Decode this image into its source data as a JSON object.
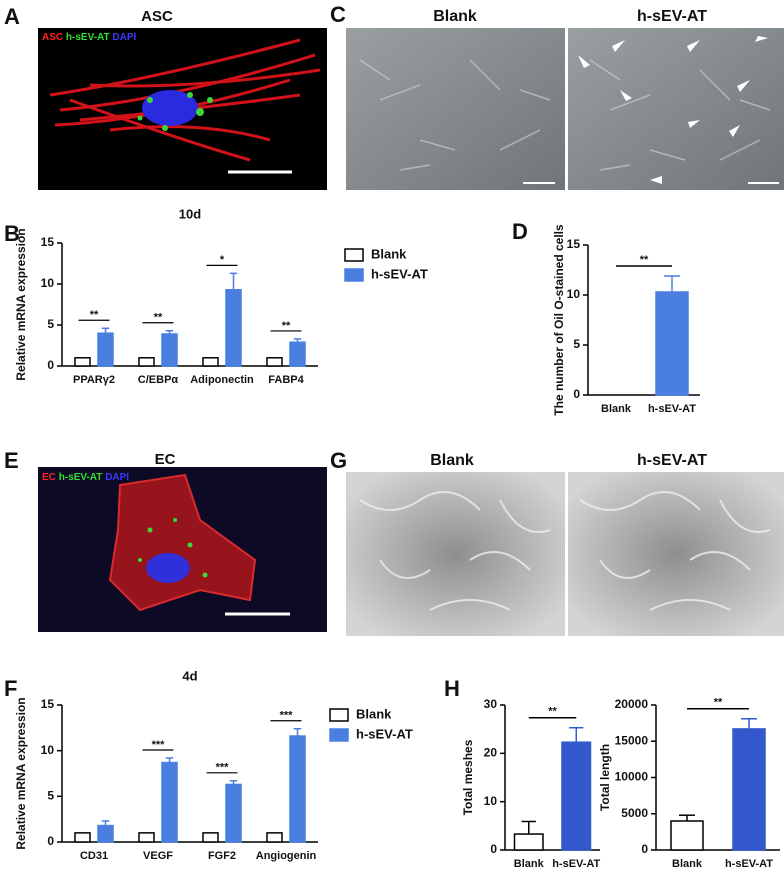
{
  "panel_A": {
    "letter": "A",
    "title": "ASC",
    "stains": [
      "ASC",
      "h-sEV-AT",
      "DAPI"
    ]
  },
  "panel_C": {
    "letter": "C",
    "labels": [
      "Blank",
      "h-sEV-AT"
    ]
  },
  "panel_E": {
    "letter": "E",
    "title": "EC",
    "stains": [
      "EC",
      "h-sEV-AT",
      "DAPI"
    ]
  },
  "panel_G": {
    "letter": "G",
    "labels": [
      "Blank",
      "h-sEV-AT"
    ]
  },
  "chart_letters": [
    "B",
    "D",
    "F",
    "H"
  ],
  "chart_data": [
    {
      "type": "bar",
      "title": "10d",
      "y_label": "Relative mRNA expression",
      "categories": [
        "PPARγ2",
        "C/EBPα",
        "Adiponectin",
        "FABP4"
      ],
      "series": [
        {
          "name": "Blank",
          "color": "#ffffff",
          "values": [
            1,
            1,
            1,
            1
          ],
          "errors": [
            null,
            null,
            null,
            null
          ]
        },
        {
          "name": "h-sEV-AT",
          "color": "#4a7fe0",
          "values": [
            4.0,
            3.9,
            9.3,
            2.9
          ],
          "errors": [
            0.6,
            0.4,
            2.0,
            0.4
          ]
        }
      ],
      "significance": [
        "**",
        "**",
        "*",
        "**"
      ],
      "ylim": [
        0,
        15
      ],
      "yticks": [
        0,
        5,
        10,
        15
      ]
    },
    {
      "type": "bar",
      "y_label": "The number of Oil O-stained cells",
      "categories": [
        "Blank",
        "h-sEV-AT"
      ],
      "color": "#4a7fe0",
      "values": [
        0,
        10.3
      ],
      "errors": [
        null,
        1.6
      ],
      "significance": "**",
      "ylim": [
        0,
        15
      ],
      "yticks": [
        0,
        5,
        10,
        15
      ]
    },
    {
      "type": "bar",
      "title": "4d",
      "y_label": "Relative mRNA expression",
      "categories": [
        "CD31",
        "VEGF",
        "FGF2",
        "Angiogenin"
      ],
      "series": [
        {
          "name": "Blank",
          "color": "#ffffff",
          "values": [
            1,
            1,
            1,
            1
          ],
          "errors": [
            null,
            null,
            null,
            null
          ]
        },
        {
          "name": "h-sEV-AT",
          "color": "#4a7fe0",
          "values": [
            1.8,
            8.7,
            6.3,
            11.6
          ],
          "errors": [
            0.5,
            0.5,
            0.4,
            0.8
          ]
        }
      ],
      "significance": [
        null,
        "***",
        "***",
        "***"
      ],
      "ylim": [
        0,
        15
      ],
      "yticks": [
        0,
        5,
        10,
        15
      ]
    },
    {
      "type": "bar",
      "y_label": "Total meshes",
      "categories": [
        "Blank",
        "h-sEV-AT"
      ],
      "colors": [
        "#ffffff",
        "#3358cc"
      ],
      "values": [
        3.3,
        22.3
      ],
      "errors": [
        2.6,
        3.0
      ],
      "significance": "**",
      "ylim": [
        0,
        30
      ],
      "yticks": [
        0,
        10,
        20,
        30
      ]
    },
    {
      "type": "bar",
      "y_label": "Total length",
      "categories": [
        "Blank",
        "h-sEV-AT"
      ],
      "colors": [
        "#ffffff",
        "#3358cc"
      ],
      "values": [
        4000,
        16700
      ],
      "errors": [
        800,
        1400
      ],
      "significance": "**",
      "ylim": [
        0,
        20000
      ],
      "yticks": [
        0,
        5000,
        10000,
        15000,
        20000
      ]
    }
  ]
}
